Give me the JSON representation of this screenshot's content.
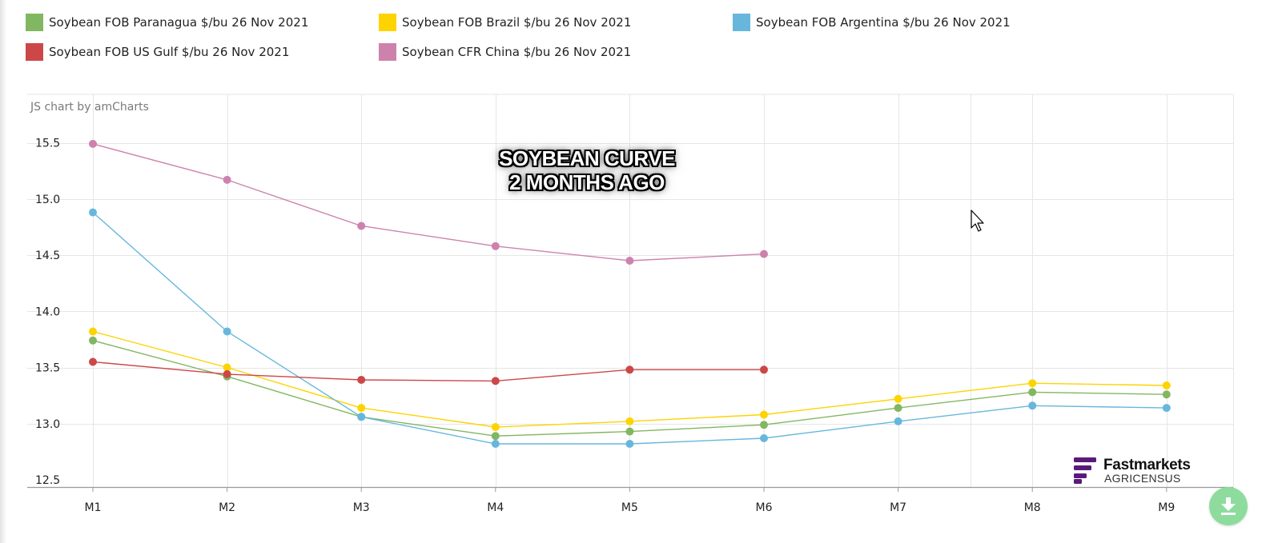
{
  "legend": [
    {
      "label": "Soybean FOB Paranagua $/bu 26 Nov 2021",
      "color": "#82b761"
    },
    {
      "label": "Soybean FOB Brazil $/bu 26 Nov 2021",
      "color": "#fdd400"
    },
    {
      "label": "Soybean FOB Argentina $/bu 26 Nov 2021",
      "color": "#67b7dc"
    },
    {
      "label": "Soybean FOB US Gulf $/bu 26 Nov 2021",
      "color": "#cc4748"
    },
    {
      "label": "Soybean CFR China $/bu 26 Nov 2021",
      "color": "#cd82ad"
    }
  ],
  "credit": "JS chart by amCharts",
  "overlay": {
    "line1": "SOYBEAN CURVE",
    "line2": "2 MONTHS AGO"
  },
  "watermark": {
    "brand": "Fastmarkets",
    "sub": "AGRICENSUS",
    "color": "#5a1a7a"
  },
  "download_icon": "download-icon",
  "chart_data": {
    "type": "line",
    "categories": [
      "M1",
      "M2",
      "M3",
      "M4",
      "M5",
      "M6",
      "M7",
      "M8",
      "M9"
    ],
    "ylim": [
      12.5,
      15.9
    ],
    "yticks": [
      "12.5",
      "13.0",
      "13.5",
      "14.0",
      "14.5",
      "15.0",
      "15.5"
    ],
    "grid": true,
    "legend_position": "top",
    "series": [
      {
        "name": "Soybean FOB Paranagua $/bu 26 Nov 2021",
        "color": "#82b761",
        "values": [
          13.74,
          13.42,
          13.06,
          12.89,
          12.93,
          12.99,
          13.14,
          13.28,
          13.26
        ]
      },
      {
        "name": "Soybean FOB Brazil $/bu 26 Nov 2021",
        "color": "#fdd400",
        "values": [
          13.82,
          13.5,
          13.14,
          12.97,
          13.02,
          13.08,
          13.22,
          13.36,
          13.34
        ]
      },
      {
        "name": "Soybean FOB Argentina $/bu 26 Nov 2021",
        "color": "#67b7dc",
        "values": [
          14.88,
          13.82,
          13.06,
          12.82,
          12.82,
          12.87,
          13.02,
          13.16,
          13.14
        ]
      },
      {
        "name": "Soybean FOB US Gulf $/bu 26 Nov 2021",
        "color": "#cc4748",
        "values": [
          13.55,
          13.44,
          13.39,
          13.38,
          13.48,
          13.48,
          null,
          null,
          null
        ]
      },
      {
        "name": "Soybean CFR China $/bu 26 Nov 2021",
        "color": "#cd82ad",
        "values": [
          15.49,
          15.17,
          14.76,
          14.58,
          14.45,
          14.51,
          null,
          null,
          null
        ]
      }
    ]
  }
}
